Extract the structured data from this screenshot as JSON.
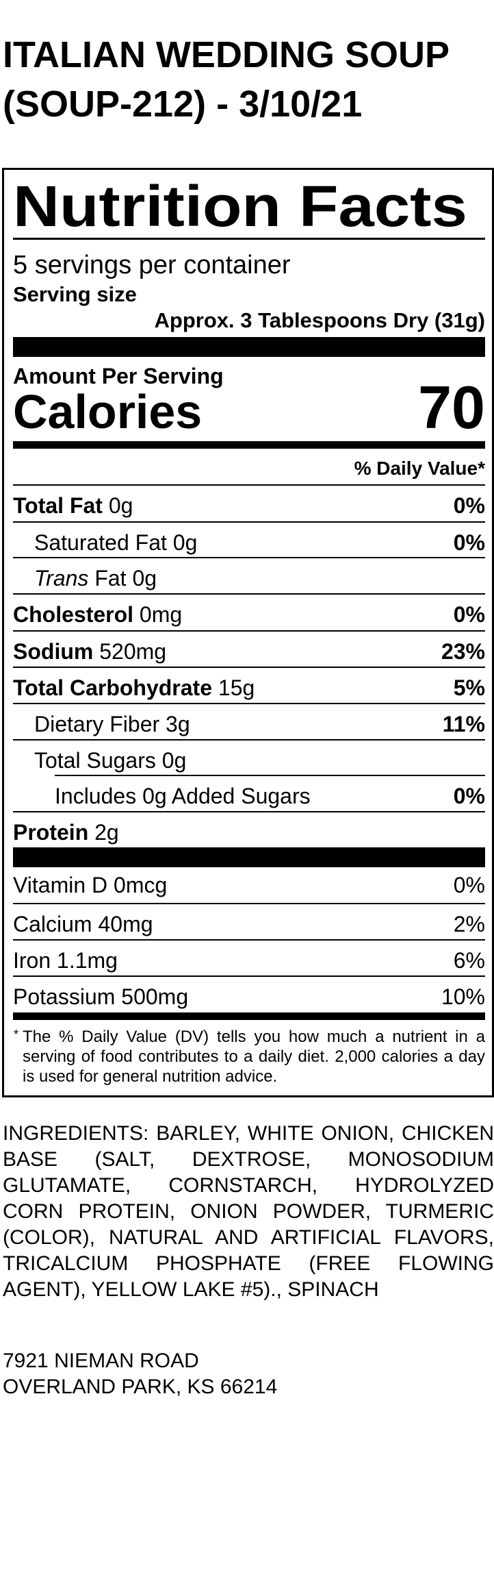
{
  "header": {
    "title_line1": "ITALIAN WEDDING SOUP",
    "title_line2": "(SOUP-212) - 3/10/21"
  },
  "label": {
    "heading": "Nutrition Facts",
    "servings_per_container": "5 servings per container",
    "serving_size_label": "Serving size",
    "serving_size_value": "Approx. 3 Tablespoons Dry (31g)",
    "amount_per_serving": "Amount Per Serving",
    "calories_label": "Calories",
    "calories_value": "70",
    "daily_value_header": "% Daily Value*",
    "nutrients": [
      {
        "name": "Total Fat",
        "amount": "0g",
        "dv": "0%"
      },
      {
        "name": "Saturated Fat",
        "amount": "0g",
        "dv": "0%"
      },
      {
        "name": "Trans",
        "amount": "Fat 0g",
        "dv": ""
      },
      {
        "name": "Cholesterol",
        "amount": "0mg",
        "dv": "0%"
      },
      {
        "name": "Sodium",
        "amount": "520mg",
        "dv": "23%"
      },
      {
        "name": "Total Carbohydrate",
        "amount": "15g",
        "dv": "5%"
      },
      {
        "name": "Dietary Fiber",
        "amount": "3g",
        "dv": "11%"
      },
      {
        "name": "Total Sugars",
        "amount": "0g",
        "dv": ""
      },
      {
        "name": "Includes 0g Added Sugars",
        "amount": "",
        "dv": "0%"
      },
      {
        "name": "Protein",
        "amount": "2g",
        "dv": ""
      }
    ],
    "vitamins": [
      {
        "name": "Vitamin D 0mcg",
        "dv": "0%"
      },
      {
        "name": "Calcium 40mg",
        "dv": "2%"
      },
      {
        "name": "Iron 1.1mg",
        "dv": "6%"
      },
      {
        "name": "Potassium 500mg",
        "dv": "10%"
      }
    ],
    "footnote_asterisk": "*",
    "footnote": "The % Daily Value (DV) tells you how much a nutrient in a serving of food contributes to a daily diet. 2,000 calories a day is used for general nutrition advice."
  },
  "ingredients": "INGREDIENTS: BARLEY, WHITE ONION, CHICKEN BASE (SALT, DEXTROSE, MONOSODIUM GLUTAMATE, CORNSTARCH, HYDROLYZED CORN PROTEIN, ONION POWDER, TURMERIC (COLOR), NATURAL AND ARTIFICIAL FLAVORS, TRICALCIUM PHOSPHATE (FREE FLOWING AGENT), YELLOW LAKE #5)., SPINACH",
  "address": {
    "line1": "7921 NIEMAN ROAD",
    "line2": "OVERLAND PARK, KS 66214"
  }
}
